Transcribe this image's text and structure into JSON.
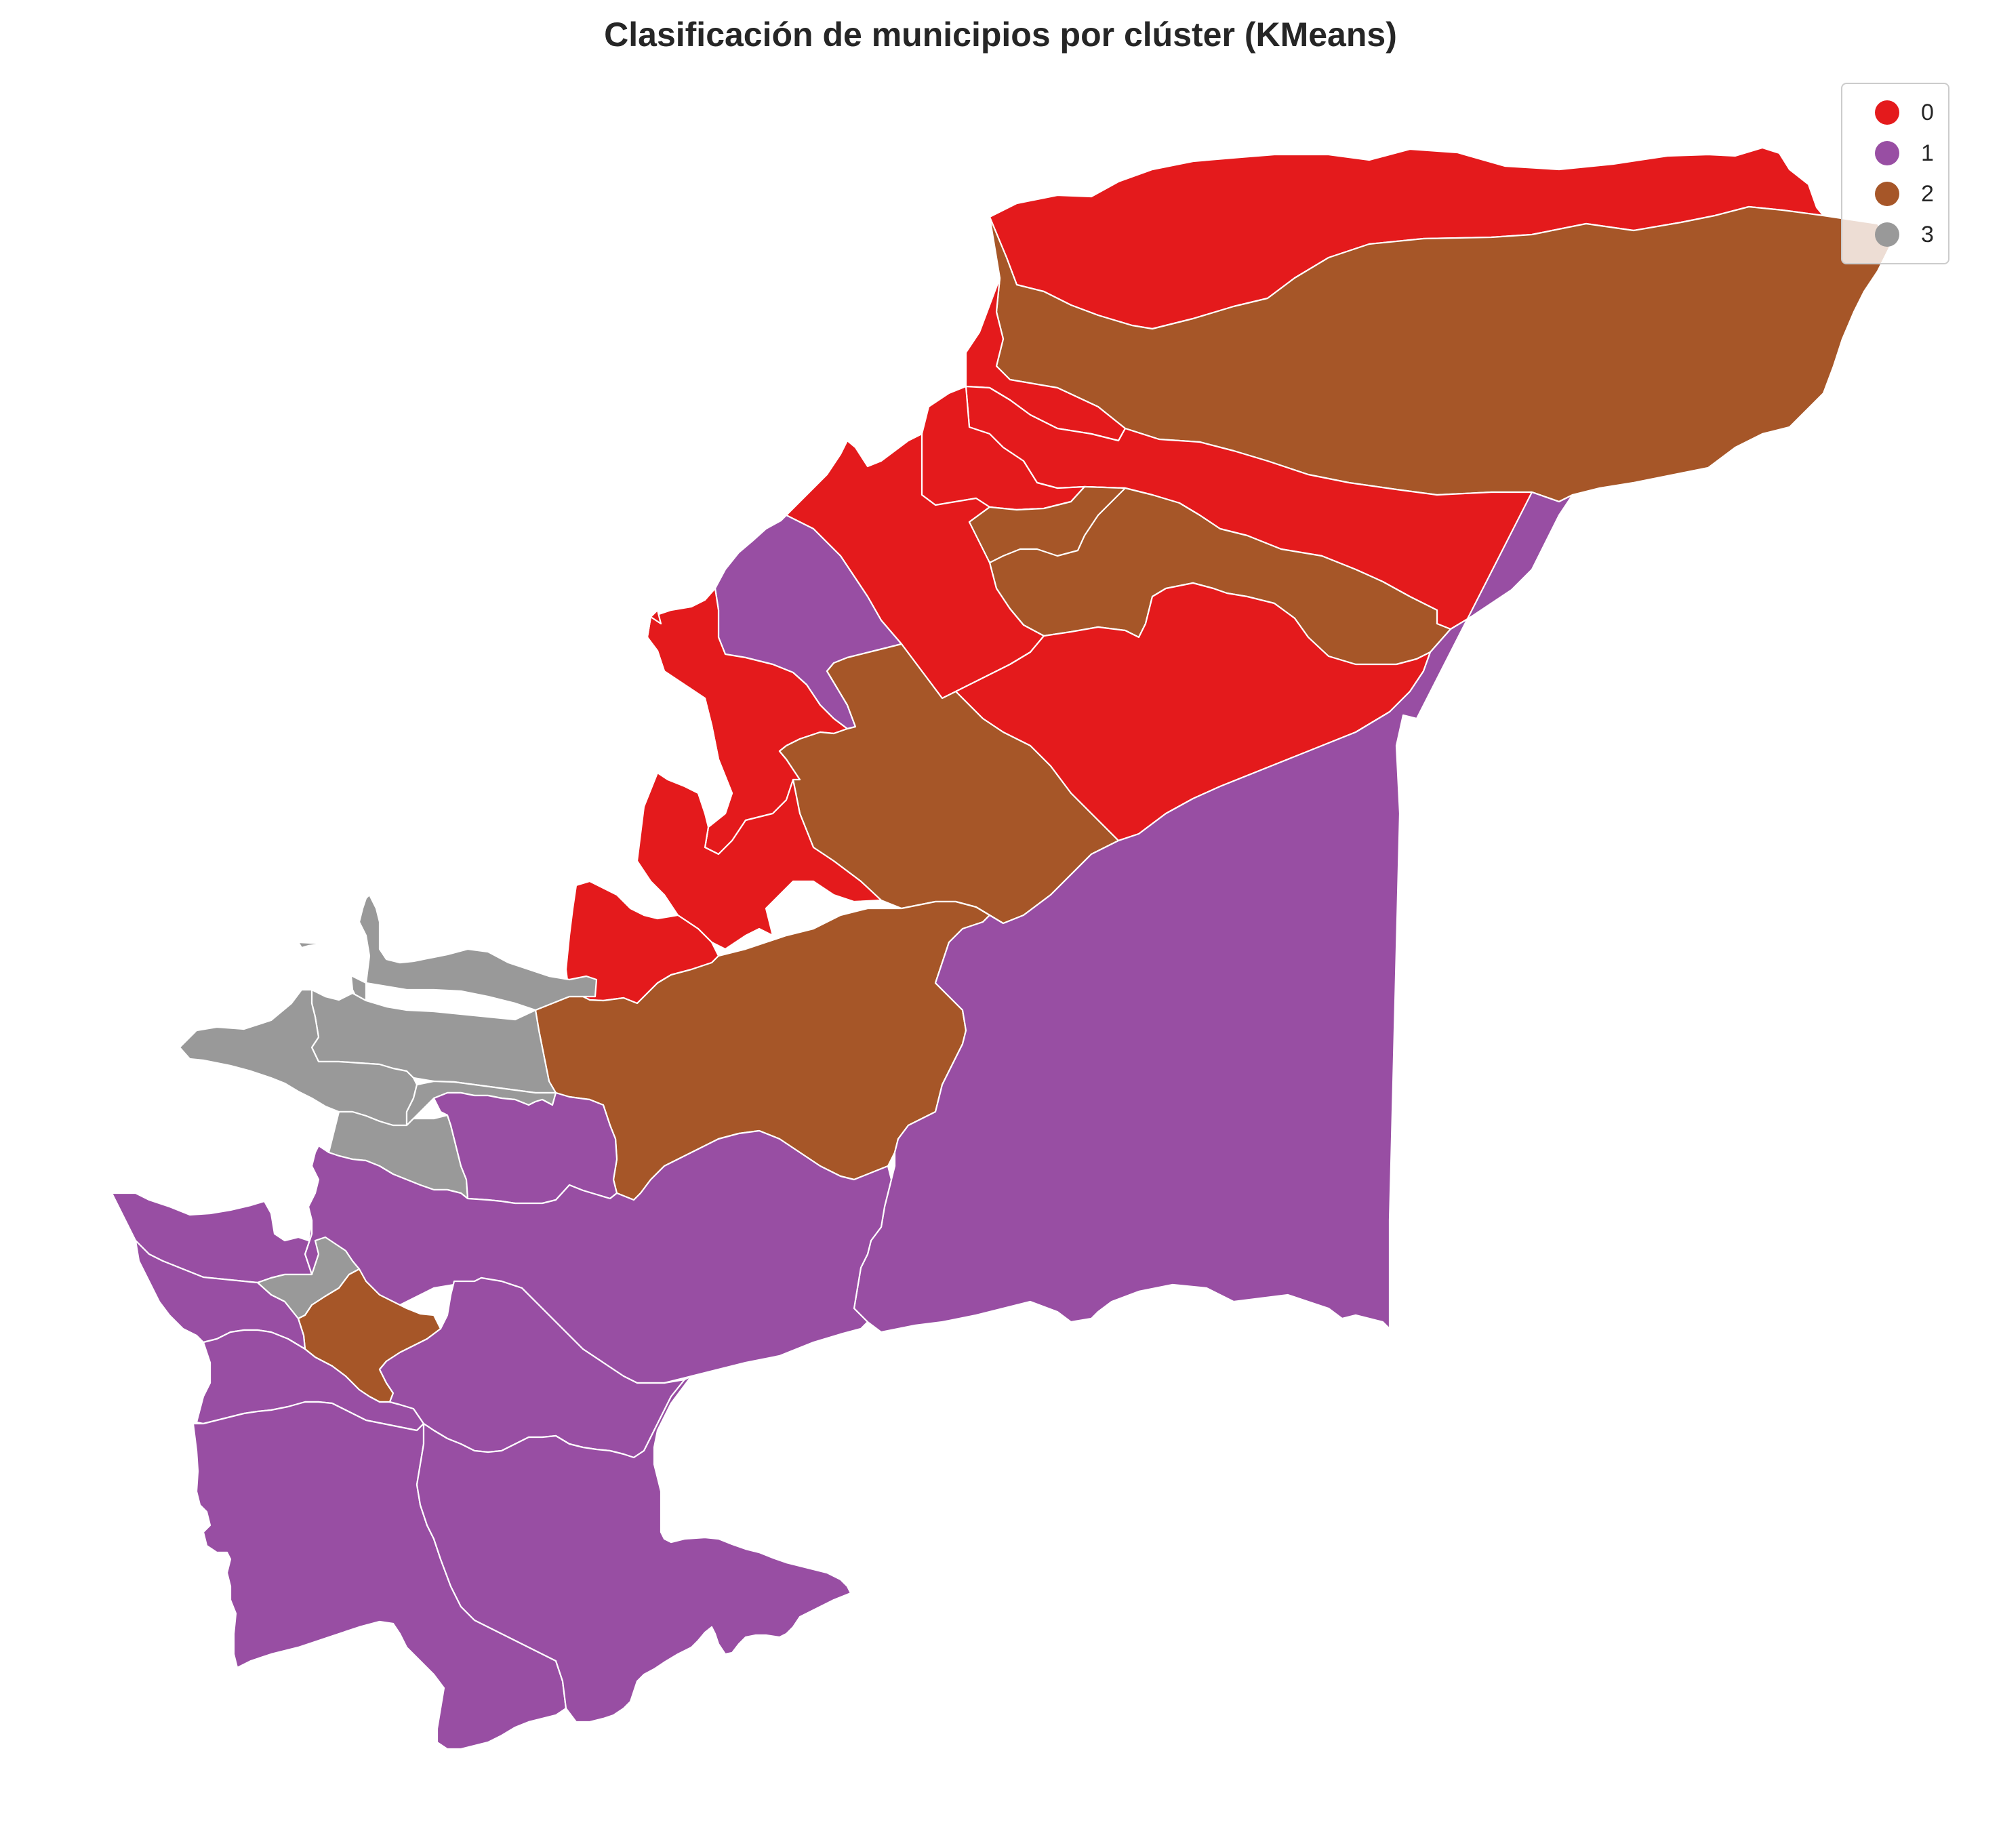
{
  "title": "Clasificación de municipios por clúster (KMeans)",
  "legend": {
    "items": [
      {
        "label": "0",
        "color": "#e41a1c"
      },
      {
        "label": "1",
        "color": "#984ea3"
      },
      {
        "label": "2",
        "color": "#a65628"
      },
      {
        "label": "3",
        "color": "#999999"
      }
    ]
  },
  "map": {
    "background": "#ffffff",
    "border_color": "#ffffff",
    "municipalities": [
      {
        "cluster": 0
      },
      {
        "cluster": 2
      },
      {
        "cluster": 0
      },
      {
        "cluster": 0
      },
      {
        "cluster": 0
      },
      {
        "cluster": 2
      },
      {
        "cluster": 0
      },
      {
        "cluster": 2
      },
      {
        "cluster": 0
      },
      {
        "cluster": 1
      },
      {
        "cluster": 0
      },
      {
        "cluster": 2
      },
      {
        "cluster": 1
      },
      {
        "cluster": 0
      },
      {
        "cluster": 0
      },
      {
        "cluster": 2
      },
      {
        "cluster": 1
      },
      {
        "cluster": 3
      },
      {
        "cluster": 3
      },
      {
        "cluster": 3
      },
      {
        "cluster": 3
      },
      {
        "cluster": 3
      },
      {
        "cluster": 1
      },
      {
        "cluster": 1
      },
      {
        "cluster": 1
      },
      {
        "cluster": 3
      },
      {
        "cluster": 2
      },
      {
        "cluster": 1
      },
      {
        "cluster": 1
      },
      {
        "cluster": 1
      },
      {
        "cluster": 1
      },
      {
        "cluster": 1
      }
    ]
  }
}
